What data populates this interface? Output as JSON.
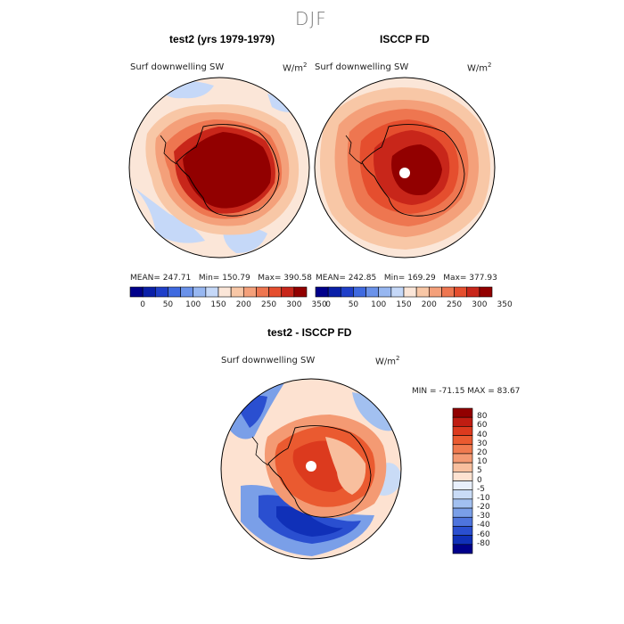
{
  "season": "DJF",
  "panels": {
    "model": {
      "title": "test2 (yrs 1979-1979)",
      "variable": "Surf downwelling SW",
      "units": "W/m",
      "units_exp": "2",
      "stats": {
        "mean": "MEAN= 247.71",
        "min": "Min= 150.79",
        "max": "Max= 390.58"
      }
    },
    "obs": {
      "title": "ISCCP FD",
      "variable": "Surf downwelling SW",
      "units": "W/m",
      "units_exp": "2",
      "stats": {
        "mean": "MEAN= 242.85",
        "min": "Min= 169.29",
        "max": "Max= 377.93"
      }
    },
    "diff": {
      "title": "test2 - ISCCP FD",
      "variable": "Surf downwelling SW",
      "units": "W/m",
      "units_exp": "2",
      "minmax": "MIN = -71.15 MAX =  83.67"
    }
  },
  "abs_colorbar": {
    "colors": [
      "#00008b",
      "#0a1fa8",
      "#1f3fc9",
      "#3f6ae0",
      "#6a92ea",
      "#97b7f1",
      "#c5d8f8",
      "#fbe6d8",
      "#f8c7a6",
      "#f4a07a",
      "#ee7650",
      "#e54e2e",
      "#c8261a",
      "#920000"
    ],
    "labels": [
      "0",
      "50",
      "100",
      "150",
      "200",
      "250",
      "300",
      "350"
    ]
  },
  "diff_colorbar": {
    "colors": [
      "#920000",
      "#c01d12",
      "#dc3a1e",
      "#ea5a30",
      "#f07a4f",
      "#f49a73",
      "#f8bf9e",
      "#fde2d1",
      "#e8effb",
      "#c9dbf6",
      "#a2c0f0",
      "#7a9fe8",
      "#4e74dd",
      "#2a4fd0",
      "#1030b8",
      "#00008b"
    ],
    "labels": [
      "80",
      "60",
      "40",
      "30",
      "20",
      "10",
      "5",
      "0",
      "-5",
      "-10",
      "-20",
      "-30",
      "-40",
      "-60",
      "-80"
    ]
  }
}
